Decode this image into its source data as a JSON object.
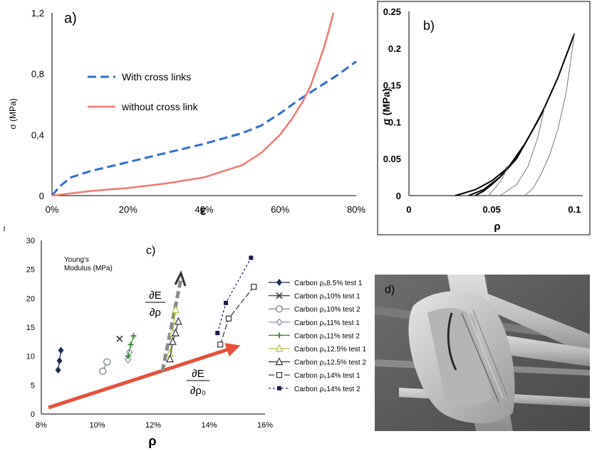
{
  "chart_data": [
    {
      "panel": "a)",
      "type": "line",
      "ylabel": "σ (MPa)",
      "xlabel": "ε",
      "xlim": [
        0,
        80
      ],
      "ylim": [
        0,
        1.2
      ],
      "x_ticks": [
        "0%",
        "20%",
        "40%",
        "60%",
        "80%"
      ],
      "y_ticks": [
        "0",
        "0,4",
        "0,8",
        "1,2"
      ],
      "legend_position": "center-left",
      "series": [
        {
          "name": "With cross links",
          "color": "#2f6fd0",
          "dash": true,
          "x": [
            0,
            2,
            5,
            10,
            20,
            30,
            40,
            50,
            55,
            60,
            65,
            70,
            75,
            80
          ],
          "y": [
            0,
            0.06,
            0.12,
            0.16,
            0.22,
            0.28,
            0.34,
            0.41,
            0.46,
            0.54,
            0.63,
            0.71,
            0.79,
            0.88
          ]
        },
        {
          "name": "without cross link",
          "color": "#f07a72",
          "dash": false,
          "x": [
            0,
            10,
            20,
            30,
            40,
            50,
            55,
            60,
            63,
            66,
            68,
            70,
            71.5,
            73,
            74
          ],
          "y": [
            0,
            0.03,
            0.05,
            0.08,
            0.12,
            0.2,
            0.28,
            0.4,
            0.5,
            0.62,
            0.72,
            0.86,
            0.97,
            1.1,
            1.2
          ]
        }
      ]
    },
    {
      "panel": "b)",
      "type": "line",
      "ylabel": "σ (MPa)",
      "xlabel": "ρ",
      "xlim": [
        0,
        0.105
      ],
      "ylim": [
        0,
        0.25
      ],
      "x_ticks": [
        "0",
        "0.05",
        "0.1"
      ],
      "y_ticks": [
        "0",
        "0.05",
        "0.1",
        "0.15",
        "0.2",
        "0.25"
      ],
      "series": [
        {
          "color": "#000000",
          "width": 2,
          "x": [
            0.028,
            0.04,
            0.05,
            0.06,
            0.07,
            0.08,
            0.09,
            0.1
          ],
          "y": [
            0,
            0.008,
            0.02,
            0.038,
            0.07,
            0.11,
            0.16,
            0.22
          ]
        },
        {
          "color": "#777777",
          "width": 1,
          "x": [
            0.07,
            0.075,
            0.08,
            0.085,
            0.09,
            0.095,
            0.1
          ],
          "y": [
            0,
            0.01,
            0.03,
            0.055,
            0.09,
            0.14,
            0.22
          ]
        },
        {
          "color": "#000000",
          "width": 2,
          "x": [
            0.036,
            0.045,
            0.055,
            0.065,
            0.075,
            0.082
          ],
          "y": [
            0,
            0.008,
            0.025,
            0.05,
            0.09,
            0.12
          ]
        },
        {
          "color": "#777777",
          "width": 1,
          "x": [
            0.055,
            0.065,
            0.072,
            0.078,
            0.082
          ],
          "y": [
            0,
            0.015,
            0.04,
            0.08,
            0.12
          ]
        },
        {
          "color": "#000000",
          "width": 2,
          "x": [
            0.04,
            0.045,
            0.05,
            0.055,
            0.06
          ],
          "y": [
            0,
            0.006,
            0.015,
            0.025,
            0.04
          ]
        },
        {
          "color": "#777777",
          "width": 1,
          "x": [
            0.048,
            0.052,
            0.056,
            0.06
          ],
          "y": [
            0,
            0.01,
            0.022,
            0.04
          ]
        }
      ]
    },
    {
      "panel": "c)",
      "type": "scatter",
      "title": "Young's Modulus (MPa)",
      "xlabel": "ρ",
      "xlim": [
        8,
        16
      ],
      "ylim": [
        0,
        30
      ],
      "x_ticks": [
        "8%",
        "10%",
        "12%",
        "14%",
        "16%"
      ],
      "y_ticks": [
        "0",
        "5",
        "10",
        "15",
        "20",
        "25",
        "30"
      ],
      "annotation_de_drho": [
        "∂E",
        "∂ρ"
      ],
      "annotation_de_drho0": [
        "∂E",
        "∂ρ₀"
      ],
      "series": [
        {
          "name": "Carbon ρ₀8.5% test 1",
          "marker": "diamond-filled",
          "color": "#1c2b55",
          "x": [
            8.6,
            8.65,
            8.7
          ],
          "y": [
            7.6,
            9.2,
            11.0
          ]
        },
        {
          "name": "Carbon ρ₀10% test 1",
          "marker": "x",
          "color": "#444444",
          "x": [
            10.8
          ],
          "y": [
            13.0
          ]
        },
        {
          "name": "Carbon ρ₀10% test 2",
          "marker": "circle-open",
          "color": "#6a7a6a",
          "x": [
            10.2,
            10.35
          ],
          "y": [
            7.4,
            9.0
          ]
        },
        {
          "name": "Carbon ρ₀11% test 1",
          "marker": "diamond-open",
          "color": "#8a8aa0",
          "x": [
            11.1,
            11.15
          ],
          "y": [
            9.4,
            10.7
          ]
        },
        {
          "name": "Carbon ρ₀11% test 2",
          "marker": "plus",
          "color": "#2e8b2e",
          "x": [
            11.1,
            11.2,
            11.3
          ],
          "y": [
            10.0,
            12.0,
            13.5
          ]
        },
        {
          "name": "Carbon ρ₀12.5% test 1",
          "marker": "triangle-open",
          "color": "#b7c23a",
          "x": [
            12.6,
            12.7,
            12.8
          ],
          "y": [
            10.5,
            14.0,
            18.0
          ]
        },
        {
          "name": "Carbon ρ₀12.5% test 2",
          "marker": "triangle-open",
          "color": "#333333",
          "x": [
            12.6,
            12.7,
            12.8,
            12.9
          ],
          "y": [
            9.5,
            12.5,
            14.0,
            16.0
          ]
        },
        {
          "name": "Carbon ρ₀14% test 1",
          "marker": "square-open",
          "color": "#333333",
          "x": [
            14.4,
            14.7,
            15.6
          ],
          "y": [
            12.0,
            16.5,
            22.0
          ]
        },
        {
          "name": "Carbon ρ₀14% test 2",
          "marker": "square-filled",
          "color": "#1a1a50",
          "x": [
            14.3,
            14.6,
            15.5
          ],
          "y": [
            14.0,
            19.2,
            27.0
          ]
        }
      ]
    }
  ],
  "panel_d": {
    "label": "d)"
  }
}
